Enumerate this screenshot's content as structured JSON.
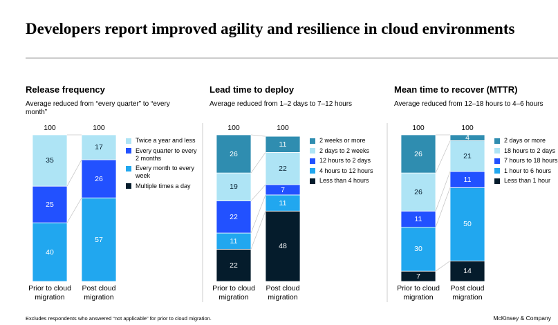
{
  "title": "Developers report improved agility and resilience in cloud environments",
  "footnote": "Excludes respondents who answered “not applicable” for prior to cloud migration.",
  "source": "McKinsey & Company",
  "chart_data": [
    {
      "type": "stacked_bar",
      "title": "Release frequency",
      "subtitle": "Average reduced from “every quarter” to “every month”",
      "categories": [
        "Prior to cloud migration",
        "Post cloud migration"
      ],
      "totals": [
        100,
        100
      ],
      "series": [
        {
          "name": "Twice a year and less",
          "color": "#aee4f5",
          "values": [
            35,
            17
          ]
        },
        {
          "name": "Every quarter to every 2 months",
          "color": "#2251ff",
          "values": [
            25,
            26
          ]
        },
        {
          "name": "Every month to every week",
          "color": "#21a7ef",
          "values": [
            40,
            57
          ]
        },
        {
          "name": "Multiple times a day",
          "color": "#051c2c",
          "values": [
            null,
            null
          ]
        }
      ]
    },
    {
      "type": "stacked_bar",
      "title": "Lead time to deploy",
      "subtitle": "Average reduced from 1–2 days to 7–12 hours",
      "categories": [
        "Prior to cloud migration",
        "Post cloud migration"
      ],
      "totals": [
        100,
        100
      ],
      "series": [
        {
          "name": "2 weeks or more",
          "color": "#2f8db0",
          "values": [
            26,
            11
          ]
        },
        {
          "name": "2 days to 2 weeks",
          "color": "#aee4f5",
          "values": [
            19,
            22
          ]
        },
        {
          "name": "12 hours to 2 days",
          "color": "#2251ff",
          "values": [
            22,
            7
          ]
        },
        {
          "name": "4 hours to 12 hours",
          "color": "#21a7ef",
          "values": [
            11,
            11
          ]
        },
        {
          "name": "Less than 4 hours",
          "color": "#051c2c",
          "values": [
            22,
            48
          ]
        }
      ]
    },
    {
      "type": "stacked_bar",
      "title": "Mean time to recover (MTTR)",
      "subtitle": "Average reduced from 12–18 hours to 4–6 hours",
      "categories": [
        "Prior to cloud migration",
        "Post cloud migration"
      ],
      "totals": [
        100,
        100
      ],
      "series": [
        {
          "name": "2 days or more",
          "color": "#2f8db0",
          "values": [
            26,
            4
          ]
        },
        {
          "name": "18 hours to 2 days",
          "color": "#aee4f5",
          "values": [
            26,
            21
          ]
        },
        {
          "name": "7 hours to 18 hours",
          "color": "#2251ff",
          "values": [
            11,
            11
          ]
        },
        {
          "name": "1 hour to 6 hours",
          "color": "#21a7ef",
          "values": [
            30,
            50
          ]
        },
        {
          "name": "Less than 1 hour",
          "color": "#051c2c",
          "values": [
            7,
            14
          ]
        }
      ]
    }
  ]
}
